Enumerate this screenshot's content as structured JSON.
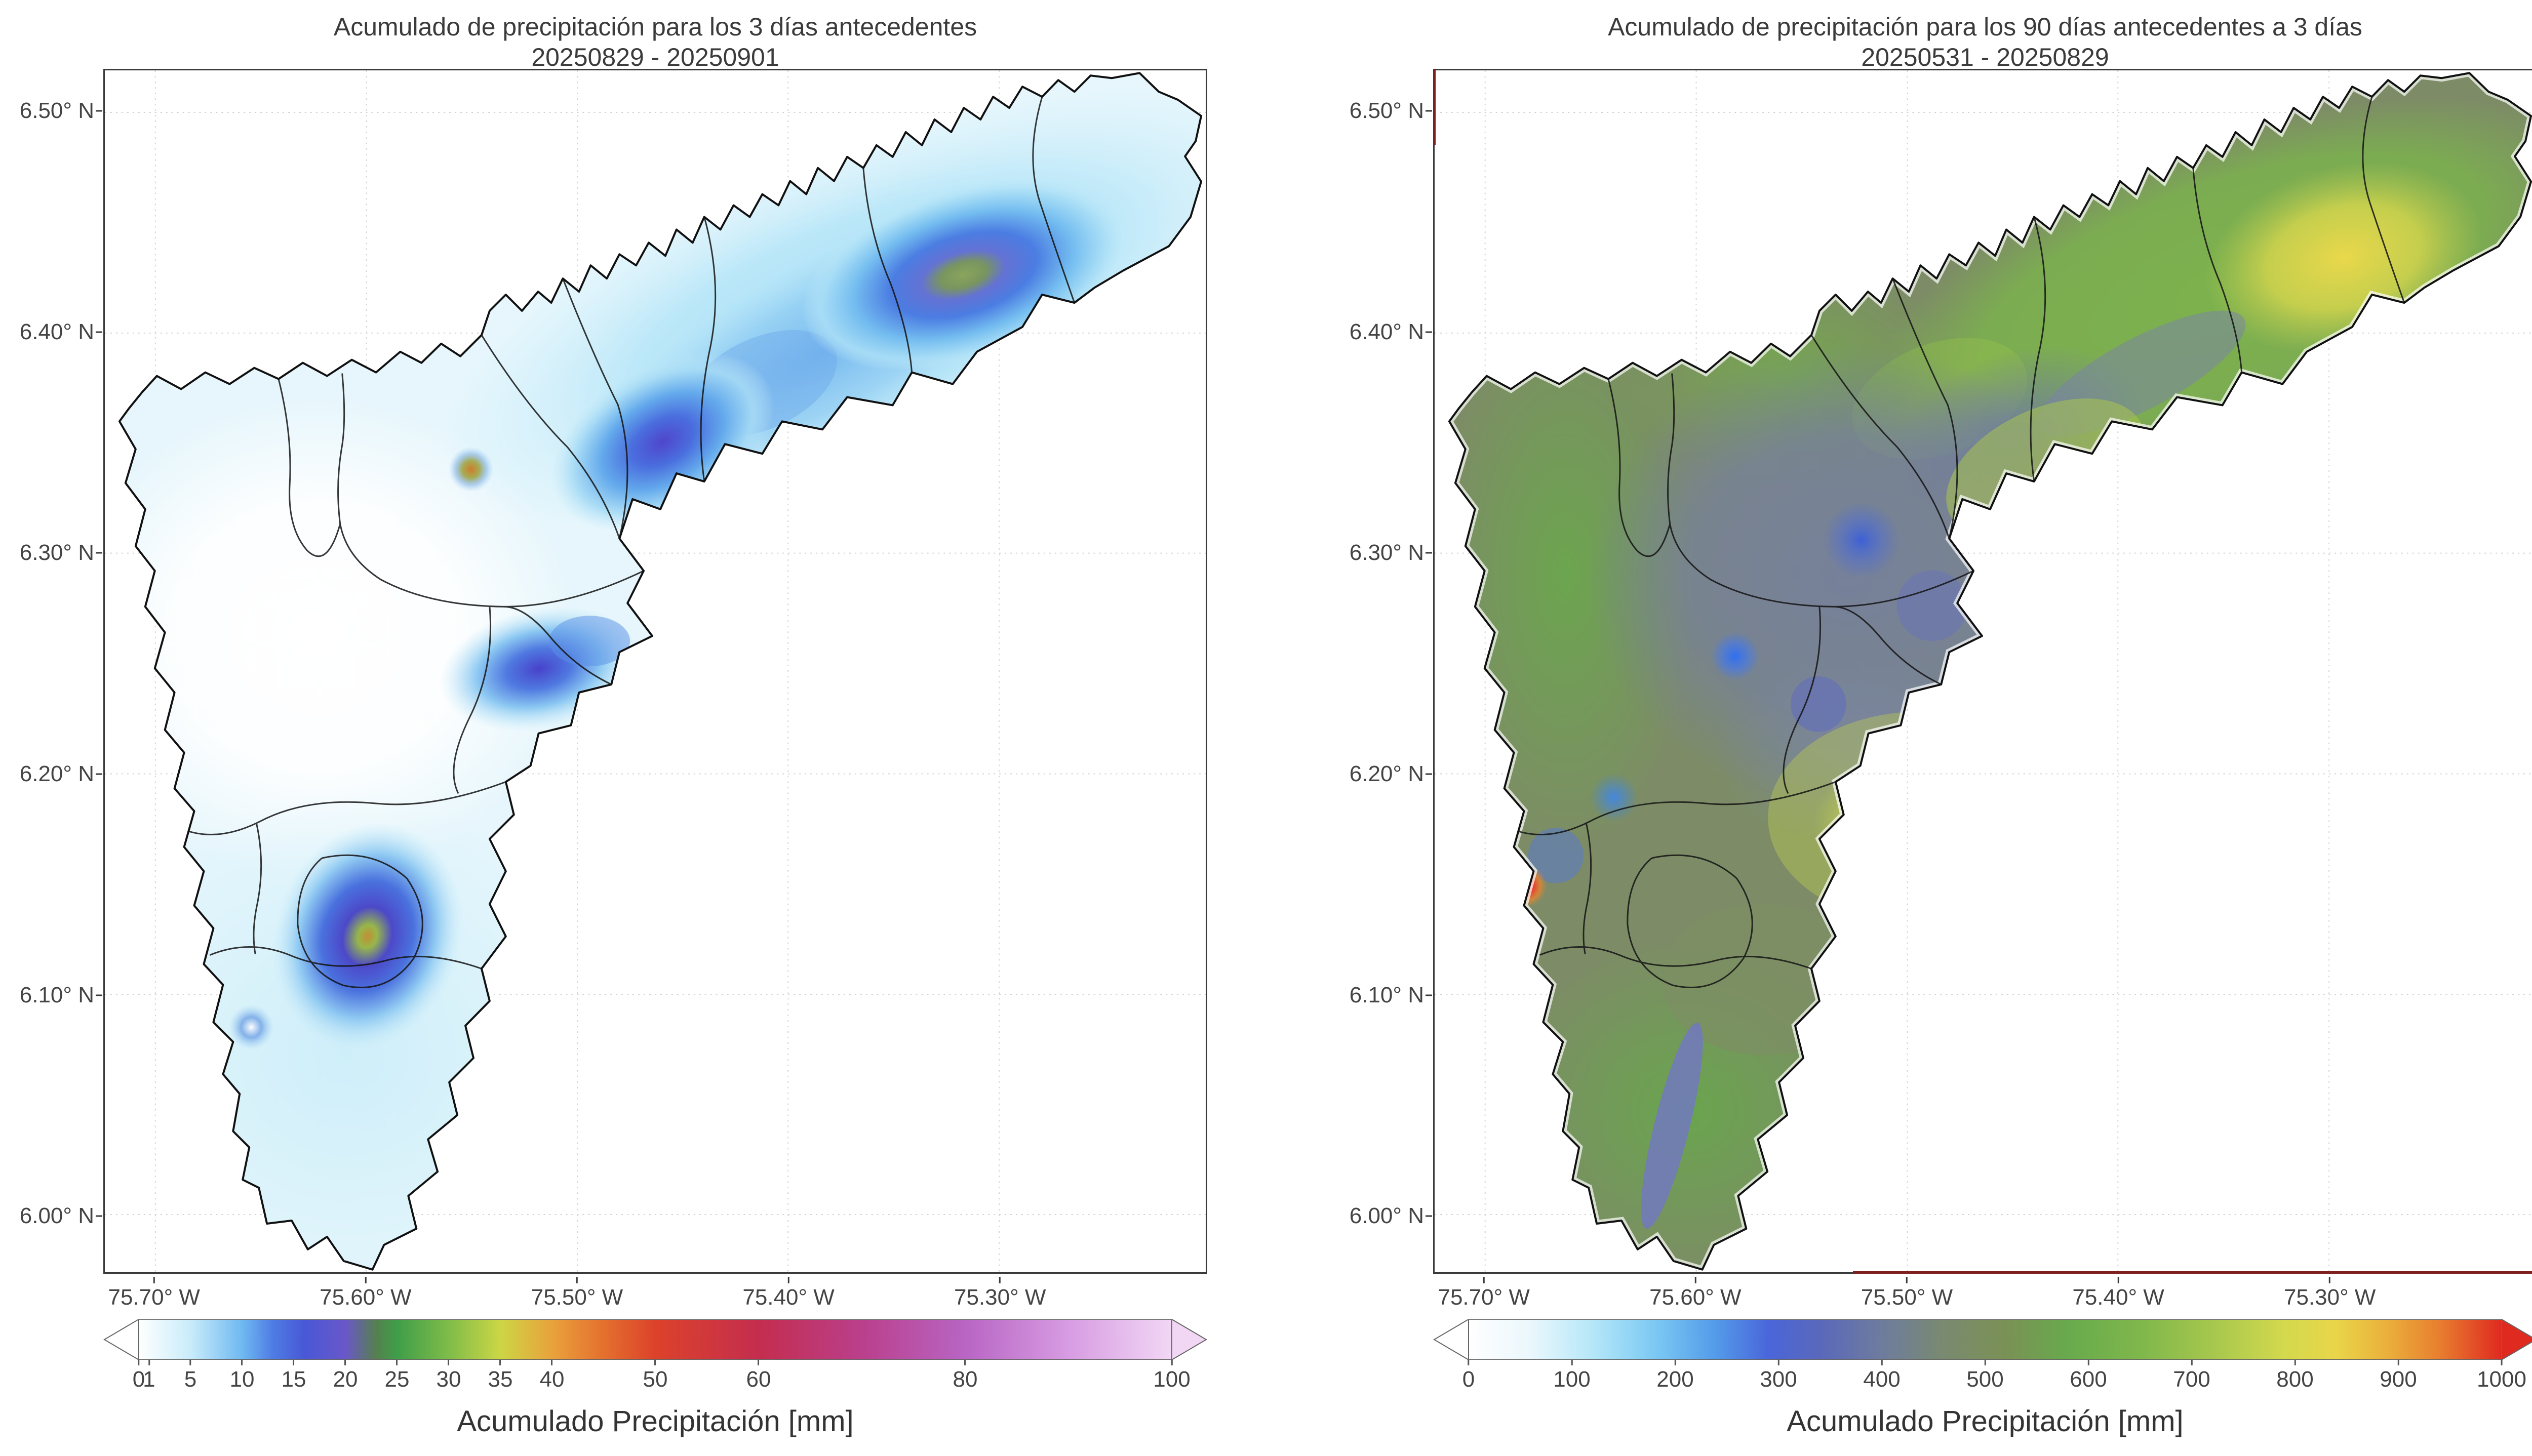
{
  "figure": {
    "background": "#ffffff",
    "panels": [
      {
        "id": "precip-3day",
        "title": "Acumulado de precipitación para los 3 días antecedentes",
        "subtitle": "20250829 - 20250901",
        "lat_range_n": [
          6.519,
          5.974
        ],
        "lon_range_w": [
          75.724,
          75.202
        ],
        "y_ticks": [
          {
            "value": 6.5,
            "label": "6.50° N"
          },
          {
            "value": 6.4,
            "label": "6.40° N"
          },
          {
            "value": 6.3,
            "label": "6.30° N"
          },
          {
            "value": 6.2,
            "label": "6.20° N"
          },
          {
            "value": 6.1,
            "label": "6.10° N"
          },
          {
            "value": 6.0,
            "label": "6.00° N"
          }
        ],
        "x_ticks": [
          {
            "value": 75.7,
            "label": "75.70° W"
          },
          {
            "value": 75.6,
            "label": "75.60° W"
          },
          {
            "value": 75.5,
            "label": "75.50° W"
          },
          {
            "value": 75.4,
            "label": "75.40° W"
          },
          {
            "value": 75.3,
            "label": "75.30° W"
          }
        ],
        "colorbar": {
          "label": "Acumulado Precipitación [mm]",
          "min": 0,
          "max": 100,
          "extend": "both",
          "tick_values": [
            0,
            1,
            5,
            10,
            15,
            20,
            25,
            30,
            35,
            40,
            50,
            60,
            80,
            100
          ],
          "tick_labels": [
            "0",
            "1",
            "5",
            "10",
            "15",
            "20",
            "25",
            "30",
            "35",
            "40",
            "50",
            "60",
            "80",
            "100"
          ],
          "stops": [
            {
              "v": 0,
              "c": "#ffffff"
            },
            {
              "v": 5,
              "c": "#c9ecfa"
            },
            {
              "v": 10,
              "c": "#6fb9f1"
            },
            {
              "v": 13,
              "c": "#4f7ce4"
            },
            {
              "v": 16,
              "c": "#4858d6"
            },
            {
              "v": 20,
              "c": "#6a57c9"
            },
            {
              "v": 23,
              "c": "#55804f"
            },
            {
              "v": 25,
              "c": "#3f9e49"
            },
            {
              "v": 30,
              "c": "#7fbc49"
            },
            {
              "v": 35,
              "c": "#ccd645"
            },
            {
              "v": 40,
              "c": "#e9a23c"
            },
            {
              "v": 45,
              "c": "#e4702e"
            },
            {
              "v": 50,
              "c": "#dc422a"
            },
            {
              "v": 60,
              "c": "#c42d4e"
            },
            {
              "v": 70,
              "c": "#ba3f8c"
            },
            {
              "v": 80,
              "c": "#b865c4"
            },
            {
              "v": 90,
              "c": "#d79ce2"
            },
            {
              "v": 100,
              "c": "#f2d7f5"
            }
          ]
        }
      },
      {
        "id": "precip-90day",
        "title": "Acumulado de precipitación para los 90 días antecedentes a 3 días",
        "subtitle": "20250531 - 20250829",
        "lat_range_n": [
          6.519,
          5.974
        ],
        "lon_range_w": [
          75.724,
          75.202
        ],
        "y_ticks": [
          {
            "value": 6.5,
            "label": "6.50° N"
          },
          {
            "value": 6.4,
            "label": "6.40° N"
          },
          {
            "value": 6.3,
            "label": "6.30° N"
          },
          {
            "value": 6.2,
            "label": "6.20° N"
          },
          {
            "value": 6.1,
            "label": "6.10° N"
          },
          {
            "value": 6.0,
            "label": "6.00° N"
          }
        ],
        "x_ticks": [
          {
            "value": 75.7,
            "label": "75.70° W"
          },
          {
            "value": 75.6,
            "label": "75.60° W"
          },
          {
            "value": 75.5,
            "label": "75.50° W"
          },
          {
            "value": 75.4,
            "label": "75.40° W"
          },
          {
            "value": 75.3,
            "label": "75.30° W"
          }
        ],
        "colorbar": {
          "label": "Acumulado Precipitación [mm]",
          "min": 0,
          "max": 1000,
          "extend": "both",
          "tick_values": [
            0,
            100,
            200,
            300,
            400,
            500,
            600,
            700,
            800,
            900,
            1000
          ],
          "tick_labels": [
            "0",
            "100",
            "200",
            "300",
            "400",
            "500",
            "600",
            "700",
            "800",
            "900",
            "1000"
          ],
          "stops": [
            {
              "v": 0,
              "c": "#ffffff"
            },
            {
              "v": 60,
              "c": "#eaf7fc"
            },
            {
              "v": 120,
              "c": "#b5e7f8"
            },
            {
              "v": 180,
              "c": "#7cc9f3"
            },
            {
              "v": 240,
              "c": "#539ae9"
            },
            {
              "v": 290,
              "c": "#4a66da"
            },
            {
              "v": 340,
              "c": "#5a68bb"
            },
            {
              "v": 400,
              "c": "#6e7c9e"
            },
            {
              "v": 460,
              "c": "#798a70"
            },
            {
              "v": 520,
              "c": "#7a9155"
            },
            {
              "v": 580,
              "c": "#68aa4d"
            },
            {
              "v": 650,
              "c": "#7fb74b"
            },
            {
              "v": 720,
              "c": "#a6c74d"
            },
            {
              "v": 790,
              "c": "#d4d94d"
            },
            {
              "v": 840,
              "c": "#e9d549"
            },
            {
              "v": 890,
              "c": "#eaaf3b"
            },
            {
              "v": 940,
              "c": "#e87e2f"
            },
            {
              "v": 1000,
              "c": "#df2a20"
            }
          ]
        }
      }
    ]
  },
  "chart_data": [
    {
      "type": "heatmap",
      "title": "Acumulado de precipitación para los 3 días antecedentes",
      "subtitle": "20250829 - 20250901",
      "geometry": "River-basin shaped region with internal municipal boundaries, southwest lobe plus northeast arm",
      "x_axis": {
        "tick_labels": [
          "75.70° W",
          "75.60° W",
          "75.50° W",
          "75.40° W",
          "75.30° W"
        ],
        "range_deg_w": [
          75.72,
          75.2
        ]
      },
      "y_axis": {
        "tick_labels": [
          "6.50° N",
          "6.40° N",
          "6.30° N",
          "6.20° N",
          "6.10° N",
          "6.00° N"
        ],
        "range_deg_n": [
          5.97,
          6.52
        ]
      },
      "colorbar": {
        "label": "Acumulado Precipitación [mm]",
        "ticks": [
          0,
          1,
          5,
          10,
          15,
          20,
          25,
          30,
          35,
          40,
          50,
          60,
          80,
          100
        ],
        "range": [
          0,
          100
        ],
        "extend": "both"
      },
      "background_mm": 2,
      "hotspots": [
        {
          "lon_w": 75.32,
          "lat_n": 6.43,
          "peak_mm": 28,
          "description": "elongated maximum on northeast arm, green core with blue ring"
        },
        {
          "lon_w": 75.46,
          "lat_n": 6.35,
          "peak_mm": 22,
          "description": "second arm maximum, dark blue-purple core"
        },
        {
          "lon_w": 75.55,
          "lat_n": 6.34,
          "peak_mm": 38,
          "description": "small isolated orange spot"
        },
        {
          "lon_w": 75.52,
          "lat_n": 6.25,
          "peak_mm": 17,
          "description": "blue blob east of center"
        },
        {
          "lon_w": 75.6,
          "lat_n": 6.12,
          "peak_mm": 32,
          "description": "southern maximum, yellow-green core ringed dark blue"
        },
        {
          "lon_w": 75.62,
          "lat_n": 6.28,
          "peak_mm": 0,
          "description": "near-zero white area in west-central basin"
        }
      ]
    },
    {
      "type": "heatmap",
      "title": "Acumulado de precipitación para los 90 días antecedentes a 3 días",
      "subtitle": "20250531 - 20250829",
      "geometry": "Same basin outline and municipal boundaries as left panel",
      "x_axis": {
        "tick_labels": [
          "75.70° W",
          "75.60° W",
          "75.50° W",
          "75.40° W",
          "75.30° W"
        ],
        "range_deg_w": [
          75.72,
          75.2
        ]
      },
      "y_axis": {
        "tick_labels": [
          "6.50° N",
          "6.40° N",
          "6.30° N",
          "6.20° N",
          "6.10° N",
          "6.00° N"
        ],
        "range_deg_n": [
          5.97,
          6.52
        ]
      },
      "colorbar": {
        "label": "Acumulado Precipitación [mm]",
        "ticks": [
          0,
          100,
          200,
          300,
          400,
          500,
          600,
          700,
          800,
          900,
          1000
        ],
        "range": [
          0,
          1000
        ],
        "extend": "both"
      },
      "background_mm": 500,
      "hotspots": [
        {
          "lon_w": 75.3,
          "lat_n": 6.43,
          "peak_mm": 780,
          "description": "yellow maximum on northeast arm"
        },
        {
          "lon_w": 75.5,
          "lat_n": 6.18,
          "peak_mm": 790,
          "description": "yellow patch east-central"
        },
        {
          "lon_w": 75.68,
          "lat_n": 6.15,
          "peak_mm": 1000,
          "description": "small extreme red/white spot on western edge"
        },
        {
          "lon_w": 75.52,
          "lat_n": 6.31,
          "peak_mm": 300,
          "description": "blue local minimum north-central"
        },
        {
          "lon_w": 75.58,
          "lat_n": 6.25,
          "peak_mm": 250,
          "description": "bright blue local minimum"
        },
        {
          "lon_w": 75.44,
          "lat_n": 6.27,
          "peak_mm": 420,
          "description": "slate blue-gray band across center"
        },
        {
          "lon_w": 75.6,
          "lat_n": 6.02,
          "peak_mm": 600,
          "description": "green southern lobe with blue-purple streak ~300"
        }
      ]
    }
  ]
}
